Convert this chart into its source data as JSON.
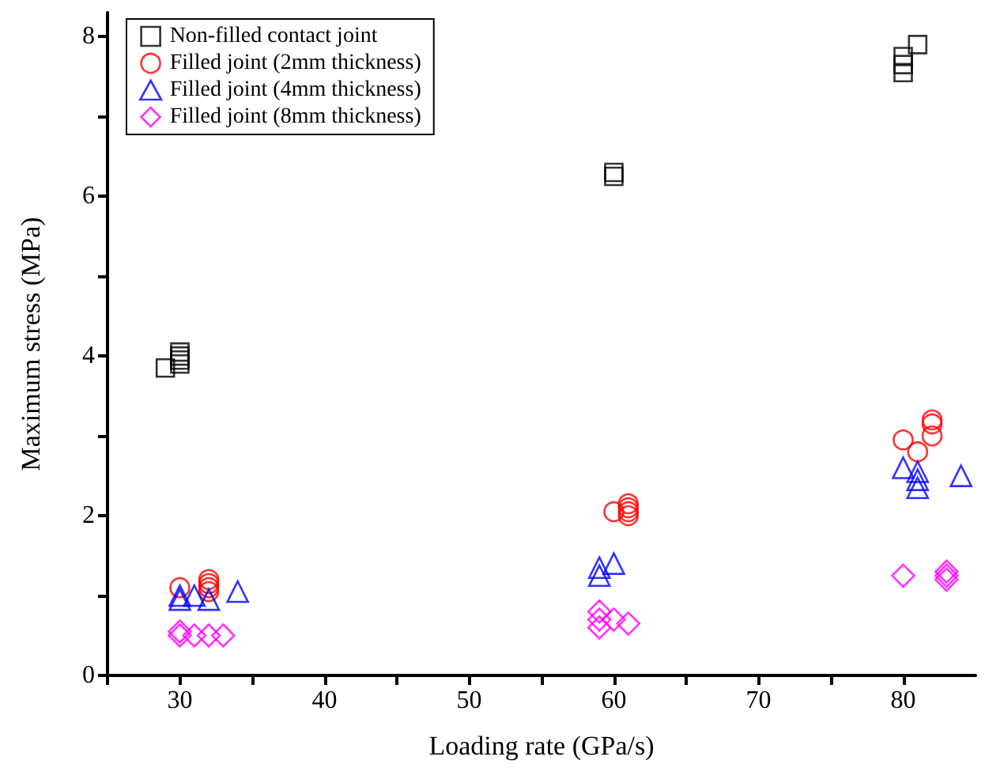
{
  "chart_data": {
    "type": "scatter",
    "xlabel": "Loading rate (GPa/s)",
    "ylabel": "Maximum stress (MPa)",
    "xlim": [
      25,
      85
    ],
    "xticks": [
      {
        "value": 25,
        "label": null
      },
      30,
      {
        "value": 35,
        "label": null
      },
      40,
      {
        "value": 45,
        "label": null
      },
      50,
      {
        "value": 55,
        "label": null
      },
      60,
      {
        "value": 65,
        "label": null
      },
      70,
      {
        "value": 75,
        "label": null
      },
      80
    ],
    "ylim": [
      0,
      8.3
    ],
    "yticks": [
      0,
      {
        "value": 1,
        "label": null
      },
      2,
      {
        "value": 3,
        "label": null
      },
      4,
      {
        "value": 5,
        "label": null
      },
      6,
      {
        "value": 7,
        "label": null
      },
      8
    ],
    "grid": false,
    "legend": "top left",
    "series": [
      {
        "name": "Non-filled contact joint",
        "color": "#000000",
        "marker": "square",
        "x": [
          29,
          30,
          30,
          30,
          30,
          60,
          60,
          80,
          80,
          80,
          81
        ],
        "values": [
          3.85,
          3.9,
          3.95,
          4.0,
          4.05,
          6.25,
          6.3,
          7.55,
          7.65,
          7.75,
          7.9
        ]
      },
      {
        "name": "Filled joint (2mm thickness)",
        "color": "#ff0000",
        "marker": "circle",
        "x": [
          30,
          32,
          32,
          32,
          32,
          60,
          61,
          61,
          61,
          61,
          80,
          81,
          82,
          82,
          82
        ],
        "values": [
          1.1,
          1.05,
          1.1,
          1.15,
          1.2,
          2.05,
          2.0,
          2.05,
          2.1,
          2.15,
          2.95,
          2.8,
          3.0,
          3.15,
          3.2
        ]
      },
      {
        "name": "Filled joint (4mm thickness)",
        "color": "#0000ff",
        "marker": "triangle",
        "x": [
          30,
          30,
          31,
          32,
          34,
          59,
          59,
          60,
          80,
          81,
          81,
          81,
          84
        ],
        "values": [
          1.0,
          0.95,
          1.0,
          0.95,
          1.05,
          1.25,
          1.35,
          1.4,
          2.6,
          2.55,
          2.45,
          2.35,
          2.5
        ]
      },
      {
        "name": "Filled joint (8mm thickness)",
        "color": "#ff00ff",
        "marker": "diamond",
        "x": [
          30,
          30,
          31,
          32,
          33,
          59,
          59,
          59,
          60,
          61,
          80,
          83,
          83,
          83
        ],
        "values": [
          0.55,
          0.5,
          0.5,
          0.5,
          0.5,
          0.6,
          0.7,
          0.8,
          0.7,
          0.65,
          1.25,
          1.2,
          1.25,
          1.3
        ]
      }
    ]
  }
}
